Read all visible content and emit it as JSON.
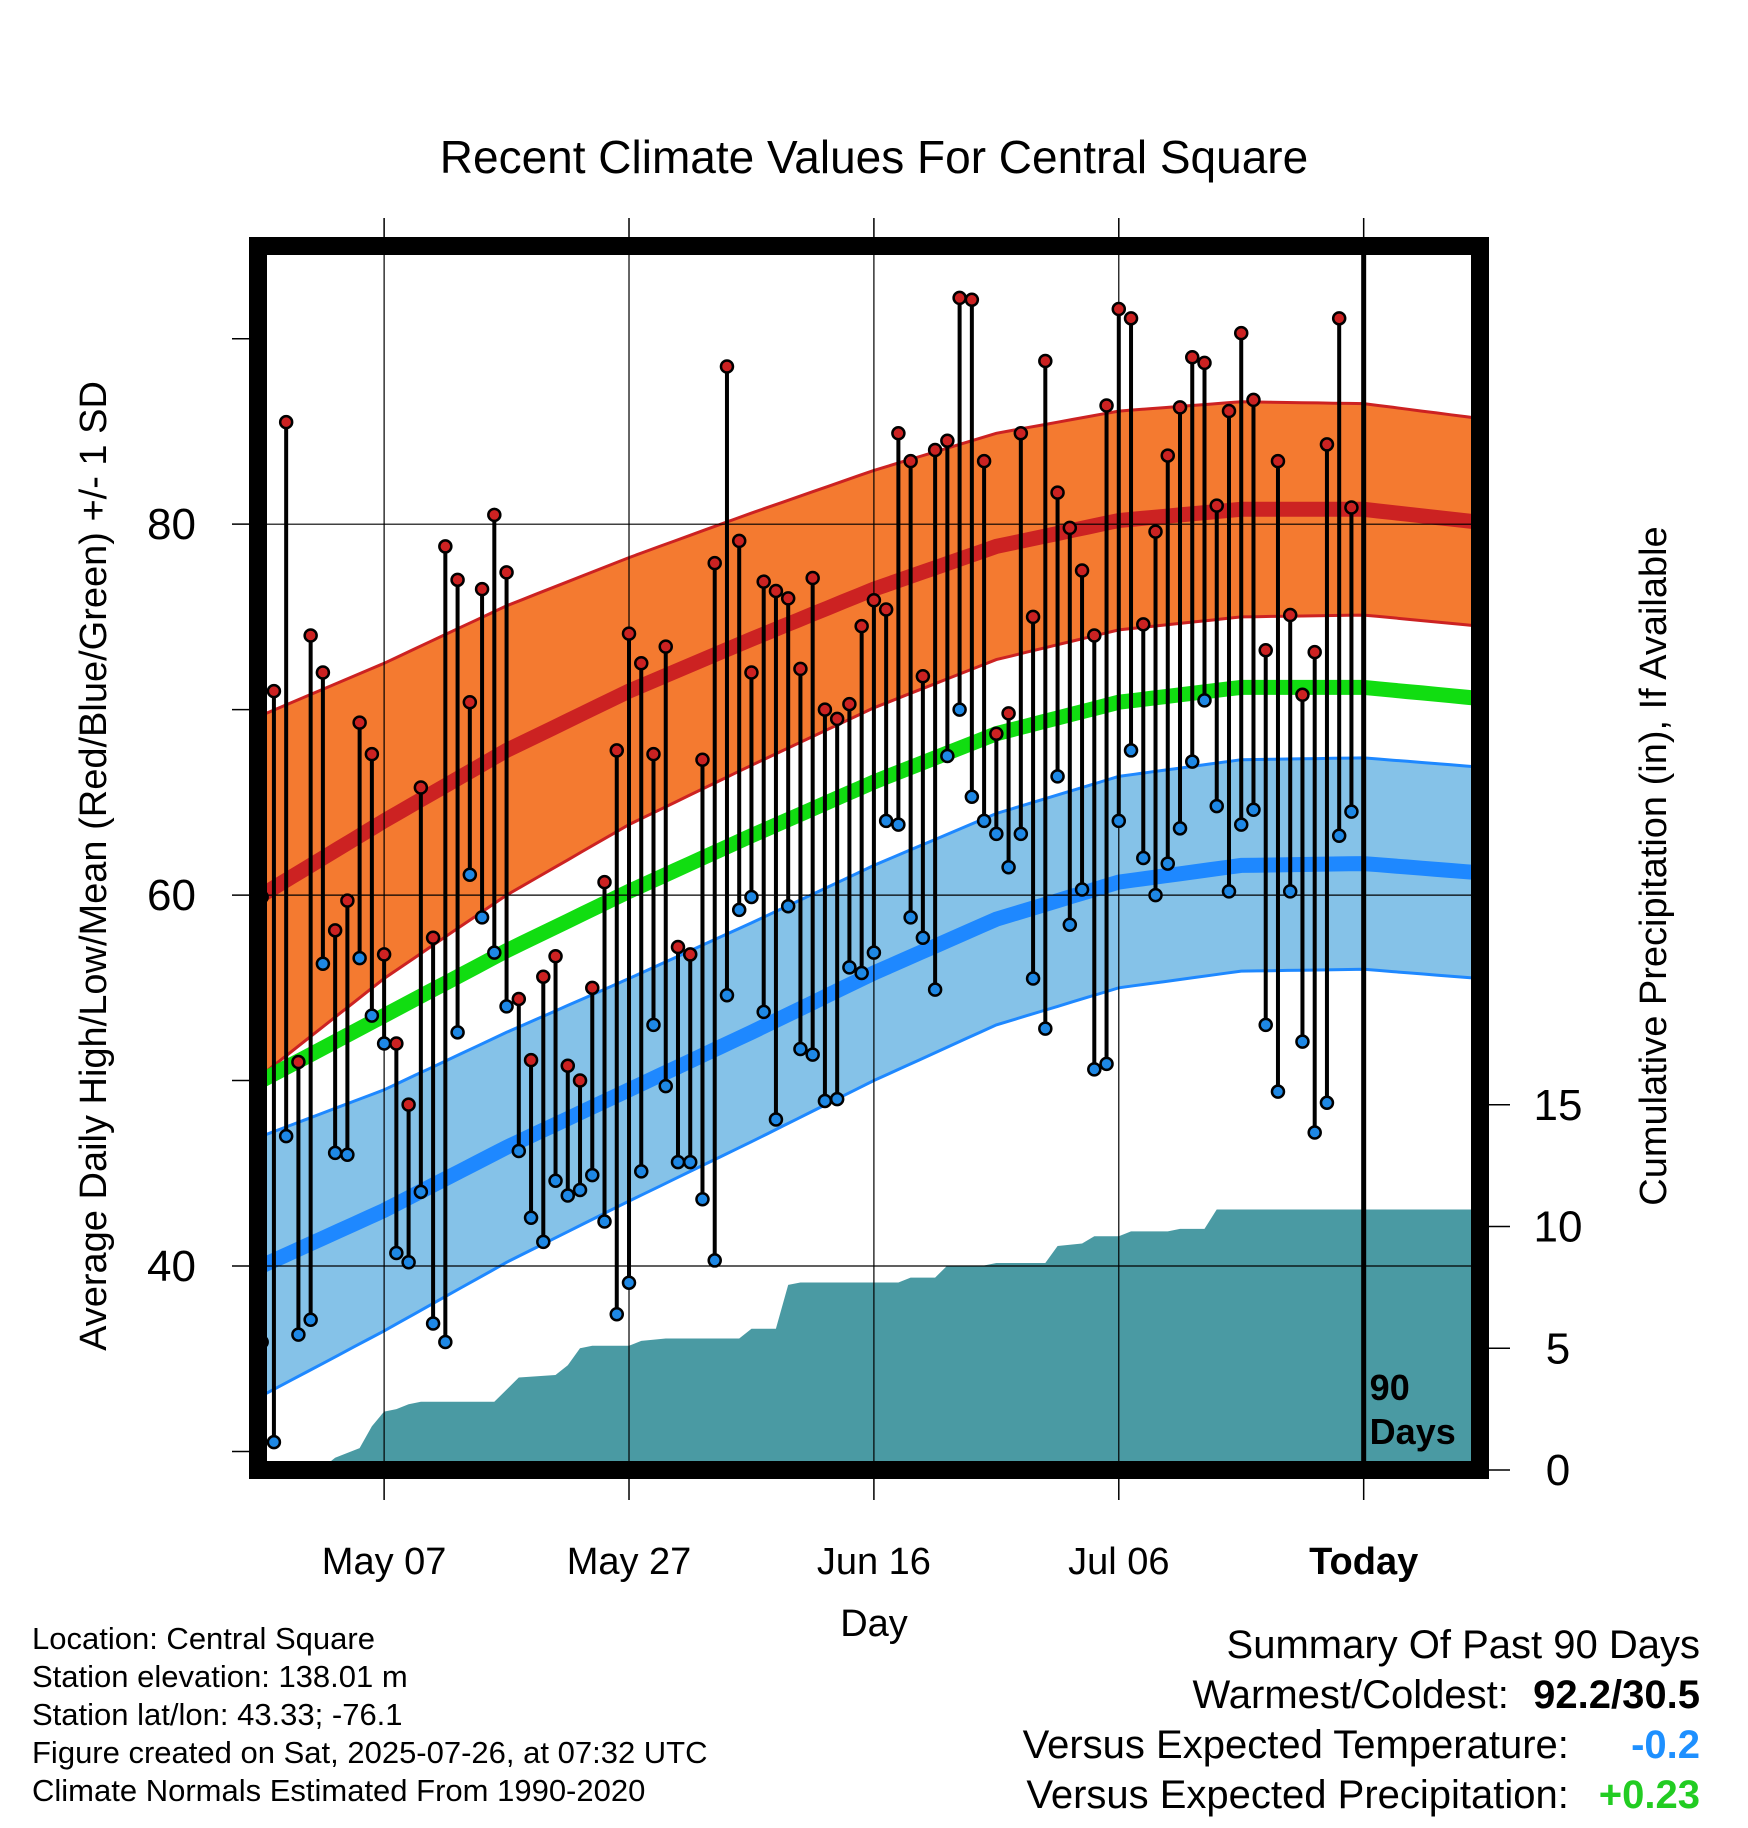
{
  "chart_data": {
    "type": "line",
    "title": "Recent Climate Values For Central Square",
    "xlabel": "Day",
    "ylabel": "Average Daily High/Low/Mean (Red/Blue/Green) +/- 1 SD",
    "y2label": "Cumulative Precipitation (in), If Available",
    "ylim": [
      29,
      95
    ],
    "y_ticks": [
      40,
      60,
      80
    ],
    "y2_ticks": [
      0,
      5,
      10,
      15
    ],
    "x_ticks": [
      {
        "day": 10,
        "label": "May 07"
      },
      {
        "day": 30,
        "label": "May 27"
      },
      {
        "day": 50,
        "label": "Jun 16"
      },
      {
        "day": 70,
        "label": "Jul 06"
      },
      {
        "day": 90,
        "label": "Today"
      }
    ],
    "xlim": [
      -0.3,
      99.5
    ],
    "today_marker": {
      "day": 90,
      "label_line1": "90",
      "label_line2": "Days"
    },
    "legend": "none",
    "grid": true,
    "colors": {
      "high_band": "#f47a30",
      "high_line": "#cc2222",
      "mean_line": "#11dd11",
      "low_band": "#85c2e8",
      "low_line": "#1e88ff",
      "precip": "#4a9aa3",
      "high_dot": "#cc2222",
      "low_dot": "#1e88e5"
    },
    "normals": [
      {
        "day": 0,
        "high": 60.0,
        "high_sd": 9.7,
        "low": 40.0,
        "low_sd": 7.0,
        "mean": 50.0
      },
      {
        "day": 10,
        "high": 64.0,
        "high_sd": 8.5,
        "low": 43.0,
        "low_sd": 6.5,
        "mean": 53.5
      },
      {
        "day": 20,
        "high": 67.8,
        "high_sd": 7.8,
        "low": 46.4,
        "low_sd": 6.2,
        "mean": 57.0
      },
      {
        "day": 30,
        "high": 71.0,
        "high_sd": 7.2,
        "low": 49.5,
        "low_sd": 6.0,
        "mean": 60.2
      },
      {
        "day": 40,
        "high": 73.8,
        "high_sd": 6.8,
        "low": 52.6,
        "low_sd": 5.9,
        "mean": 63.2
      },
      {
        "day": 50,
        "high": 76.5,
        "high_sd": 6.4,
        "low": 55.8,
        "low_sd": 5.8,
        "mean": 66.1
      },
      {
        "day": 60,
        "high": 78.8,
        "high_sd": 6.1,
        "low": 58.7,
        "low_sd": 5.7,
        "mean": 68.7
      },
      {
        "day": 70,
        "high": 80.2,
        "high_sd": 5.9,
        "low": 60.7,
        "low_sd": 5.7,
        "mean": 70.4
      },
      {
        "day": 80,
        "high": 80.8,
        "high_sd": 5.8,
        "low": 61.6,
        "low_sd": 5.7,
        "mean": 71.2
      },
      {
        "day": 90,
        "high": 80.8,
        "high_sd": 5.7,
        "low": 61.7,
        "low_sd": 5.7,
        "mean": 71.2
      },
      {
        "day": 99.5,
        "high": 80.1,
        "high_sd": 5.6,
        "low": 61.2,
        "low_sd": 5.7,
        "mean": 70.6
      }
    ],
    "daily": [
      {
        "day": 0,
        "high": 59.9,
        "low": 35.9
      },
      {
        "day": 1,
        "high": 71.0,
        "low": 30.5
      },
      {
        "day": 2,
        "high": 85.5,
        "low": 47.0
      },
      {
        "day": 3,
        "high": 51.0,
        "low": 36.3
      },
      {
        "day": 4,
        "high": 74.0,
        "low": 37.1
      },
      {
        "day": 5,
        "high": 72.0,
        "low": 56.3
      },
      {
        "day": 6,
        "high": 58.1,
        "low": 46.1
      },
      {
        "day": 7,
        "high": 59.7,
        "low": 46.0
      },
      {
        "day": 8,
        "high": 69.3,
        "low": 56.6
      },
      {
        "day": 9,
        "high": 67.6,
        "low": 53.5
      },
      {
        "day": 10,
        "high": 56.8,
        "low": 52.0
      },
      {
        "day": 11,
        "high": 52.0,
        "low": 40.7
      },
      {
        "day": 12,
        "high": 48.7,
        "low": 40.2
      },
      {
        "day": 13,
        "high": 65.8,
        "low": 44.0
      },
      {
        "day": 14,
        "high": 57.7,
        "low": 36.9
      },
      {
        "day": 15,
        "high": 78.8,
        "low": 35.9
      },
      {
        "day": 16,
        "high": 77.0,
        "low": 52.6
      },
      {
        "day": 17,
        "high": 70.4,
        "low": 61.1
      },
      {
        "day": 18,
        "high": 76.5,
        "low": 58.8
      },
      {
        "day": 19,
        "high": 80.5,
        "low": 56.9
      },
      {
        "day": 20,
        "high": 77.4,
        "low": 54.0
      },
      {
        "day": 21,
        "high": 54.4,
        "low": 46.2
      },
      {
        "day": 22,
        "high": 51.1,
        "low": 42.6
      },
      {
        "day": 23,
        "high": 55.6,
        "low": 41.3
      },
      {
        "day": 24,
        "high": 56.7,
        "low": 44.6
      },
      {
        "day": 25,
        "high": 50.8,
        "low": 43.8
      },
      {
        "day": 26,
        "high": 50.0,
        "low": 44.1
      },
      {
        "day": 27,
        "high": 55.0,
        "low": 44.9
      },
      {
        "day": 28,
        "high": 60.7,
        "low": 42.4
      },
      {
        "day": 29,
        "high": 67.8,
        "low": 37.4
      },
      {
        "day": 30,
        "high": 74.1,
        "low": 39.1
      },
      {
        "day": 31,
        "high": 72.5,
        "low": 45.1
      },
      {
        "day": 32,
        "high": 67.6,
        "low": 53.0
      },
      {
        "day": 33,
        "high": 73.4,
        "low": 49.7
      },
      {
        "day": 34,
        "high": 57.2,
        "low": 45.6
      },
      {
        "day": 35,
        "high": 56.8,
        "low": 45.6
      },
      {
        "day": 36,
        "high": 67.3,
        "low": 43.6
      },
      {
        "day": 37,
        "high": 77.9,
        "low": 40.3
      },
      {
        "day": 38,
        "high": 88.5,
        "low": 54.6
      },
      {
        "day": 39,
        "high": 79.1,
        "low": 59.2
      },
      {
        "day": 40,
        "high": 72.0,
        "low": 59.9
      },
      {
        "day": 41,
        "high": 76.9,
        "low": 53.7
      },
      {
        "day": 42,
        "high": 76.4,
        "low": 47.9
      },
      {
        "day": 43,
        "high": 76.0,
        "low": 59.4
      },
      {
        "day": 44,
        "high": 72.2,
        "low": 51.7
      },
      {
        "day": 45,
        "high": 77.1,
        "low": 51.4
      },
      {
        "day": 46,
        "high": 70.0,
        "low": 48.9
      },
      {
        "day": 47,
        "high": 69.5,
        "low": 49.0
      },
      {
        "day": 48,
        "high": 70.3,
        "low": 56.1
      },
      {
        "day": 49,
        "high": 74.5,
        "low": 55.8
      },
      {
        "day": 50,
        "high": 75.9,
        "low": 56.9
      },
      {
        "day": 51,
        "high": 75.4,
        "low": 64.0
      },
      {
        "day": 52,
        "high": 84.9,
        "low": 63.8
      },
      {
        "day": 53,
        "high": 83.4,
        "low": 58.8
      },
      {
        "day": 54,
        "high": 71.8,
        "low": 57.7
      },
      {
        "day": 55,
        "high": 84.0,
        "low": 54.9
      },
      {
        "day": 56,
        "high": 84.5,
        "low": 67.5
      },
      {
        "day": 57,
        "high": 92.2,
        "low": 70.0
      },
      {
        "day": 58,
        "high": 92.1,
        "low": 65.3
      },
      {
        "day": 59,
        "high": 83.4,
        "low": 64.0
      },
      {
        "day": 60,
        "high": 68.7,
        "low": 63.3
      },
      {
        "day": 61,
        "high": 69.8,
        "low": 61.5
      },
      {
        "day": 62,
        "high": 84.9,
        "low": 63.3
      },
      {
        "day": 63,
        "high": 75.0,
        "low": 55.5
      },
      {
        "day": 64,
        "high": 88.8,
        "low": 52.8
      },
      {
        "day": 65,
        "high": 81.7,
        "low": 66.4
      },
      {
        "day": 66,
        "high": 79.8,
        "low": 58.4
      },
      {
        "day": 67,
        "high": 77.5,
        "low": 60.3
      },
      {
        "day": 68,
        "high": 74.0,
        "low": 50.6
      },
      {
        "day": 69,
        "high": 86.4,
        "low": 50.9
      },
      {
        "day": 70,
        "high": 91.6,
        "low": 64.0
      },
      {
        "day": 71,
        "high": 91.1,
        "low": 67.8
      },
      {
        "day": 72,
        "high": 74.6,
        "low": 62.0
      },
      {
        "day": 73,
        "high": 79.6,
        "low": 60.0
      },
      {
        "day": 74,
        "high": 83.7,
        "low": 61.7
      },
      {
        "day": 75,
        "high": 86.3,
        "low": 63.6
      },
      {
        "day": 76,
        "high": 89.0,
        "low": 67.2
      },
      {
        "day": 77,
        "high": 88.7,
        "low": 70.5
      },
      {
        "day": 78,
        "high": 81.0,
        "low": 64.8
      },
      {
        "day": 79,
        "high": 86.1,
        "low": 60.2
      },
      {
        "day": 80,
        "high": 90.3,
        "low": 63.8
      },
      {
        "day": 81,
        "high": 86.7,
        "low": 64.6
      },
      {
        "day": 82,
        "high": 73.2,
        "low": 53.0
      },
      {
        "day": 83,
        "high": 83.4,
        "low": 49.4
      },
      {
        "day": 84,
        "high": 75.1,
        "low": 60.2
      },
      {
        "day": 85,
        "high": 70.8,
        "low": 52.1
      },
      {
        "day": 86,
        "high": 73.1,
        "low": 47.2
      },
      {
        "day": 87,
        "high": 84.3,
        "low": 48.8
      },
      {
        "day": 88,
        "high": 91.1,
        "low": 63.2
      },
      {
        "day": 89,
        "high": 80.9,
        "low": 64.5
      }
    ],
    "precip_cumulative": [
      {
        "day": 0,
        "in": 0.0
      },
      {
        "day": 5,
        "in": 0.1
      },
      {
        "day": 6,
        "in": 0.5
      },
      {
        "day": 8,
        "in": 0.9
      },
      {
        "day": 9,
        "in": 1.8
      },
      {
        "day": 10,
        "in": 2.4
      },
      {
        "day": 11,
        "in": 2.5
      },
      {
        "day": 12,
        "in": 2.7
      },
      {
        "day": 13,
        "in": 2.8
      },
      {
        "day": 19,
        "in": 2.8
      },
      {
        "day": 21,
        "in": 3.8
      },
      {
        "day": 24,
        "in": 3.9
      },
      {
        "day": 25,
        "in": 4.3
      },
      {
        "day": 26,
        "in": 5.0
      },
      {
        "day": 27,
        "in": 5.1
      },
      {
        "day": 30,
        "in": 5.1
      },
      {
        "day": 31,
        "in": 5.3
      },
      {
        "day": 33,
        "in": 5.4
      },
      {
        "day": 39,
        "in": 5.4
      },
      {
        "day": 40,
        "in": 5.8
      },
      {
        "day": 42,
        "in": 5.8
      },
      {
        "day": 43,
        "in": 7.6
      },
      {
        "day": 44,
        "in": 7.7
      },
      {
        "day": 48,
        "in": 7.7
      },
      {
        "day": 52,
        "in": 7.7
      },
      {
        "day": 53,
        "in": 7.9
      },
      {
        "day": 55,
        "in": 7.9
      },
      {
        "day": 56,
        "in": 8.4
      },
      {
        "day": 59,
        "in": 8.4
      },
      {
        "day": 60,
        "in": 8.5
      },
      {
        "day": 64,
        "in": 8.5
      },
      {
        "day": 65,
        "in": 9.2
      },
      {
        "day": 67,
        "in": 9.3
      },
      {
        "day": 68,
        "in": 9.6
      },
      {
        "day": 70,
        "in": 9.6
      },
      {
        "day": 71,
        "in": 9.8
      },
      {
        "day": 74,
        "in": 9.8
      },
      {
        "day": 75,
        "in": 9.9
      },
      {
        "day": 77,
        "in": 9.9
      },
      {
        "day": 78,
        "in": 10.7
      },
      {
        "day": 99.5,
        "in": 10.7
      }
    ]
  },
  "footer": {
    "location": "Location: Central Square",
    "elevation": "Station elevation: 138.01 m",
    "latlon": "Station lat/lon: 43.33; -76.1",
    "created": "Figure created on Sat, 2025-07-26, at 07:32 UTC",
    "normals": "Climate Normals Estimated From 1990-2020"
  },
  "summary": {
    "title": "Summary Of Past 90 Days",
    "warm_cold_label": "Warmest/Coldest:",
    "warm_cold_value": "92.2/30.5",
    "temp_label": "Versus Expected Temperature:",
    "temp_value": "-0.2",
    "precip_label": "Versus Expected Precipitation:",
    "precip_value": "+0.23"
  }
}
